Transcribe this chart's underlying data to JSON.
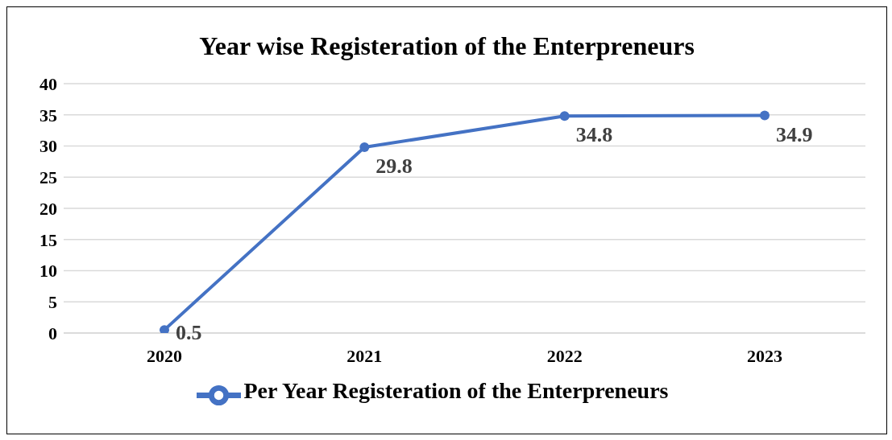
{
  "chart_data": {
    "type": "line",
    "title": "Year wise Registeration of the Enterpreneurs",
    "categories": [
      "2020",
      "2021",
      "2022",
      "2023"
    ],
    "series": [
      {
        "name": "Per Year Registeration of the Enterpreneurs",
        "color": "#4472c4",
        "values": [
          0.5,
          29.8,
          34.8,
          34.9
        ]
      }
    ],
    "ylim": [
      0,
      40
    ],
    "yticks": [
      0,
      5,
      10,
      15,
      20,
      25,
      30,
      35,
      40
    ],
    "grid": "y",
    "legend": "bottom",
    "marker": "circle",
    "data_labels": true
  }
}
